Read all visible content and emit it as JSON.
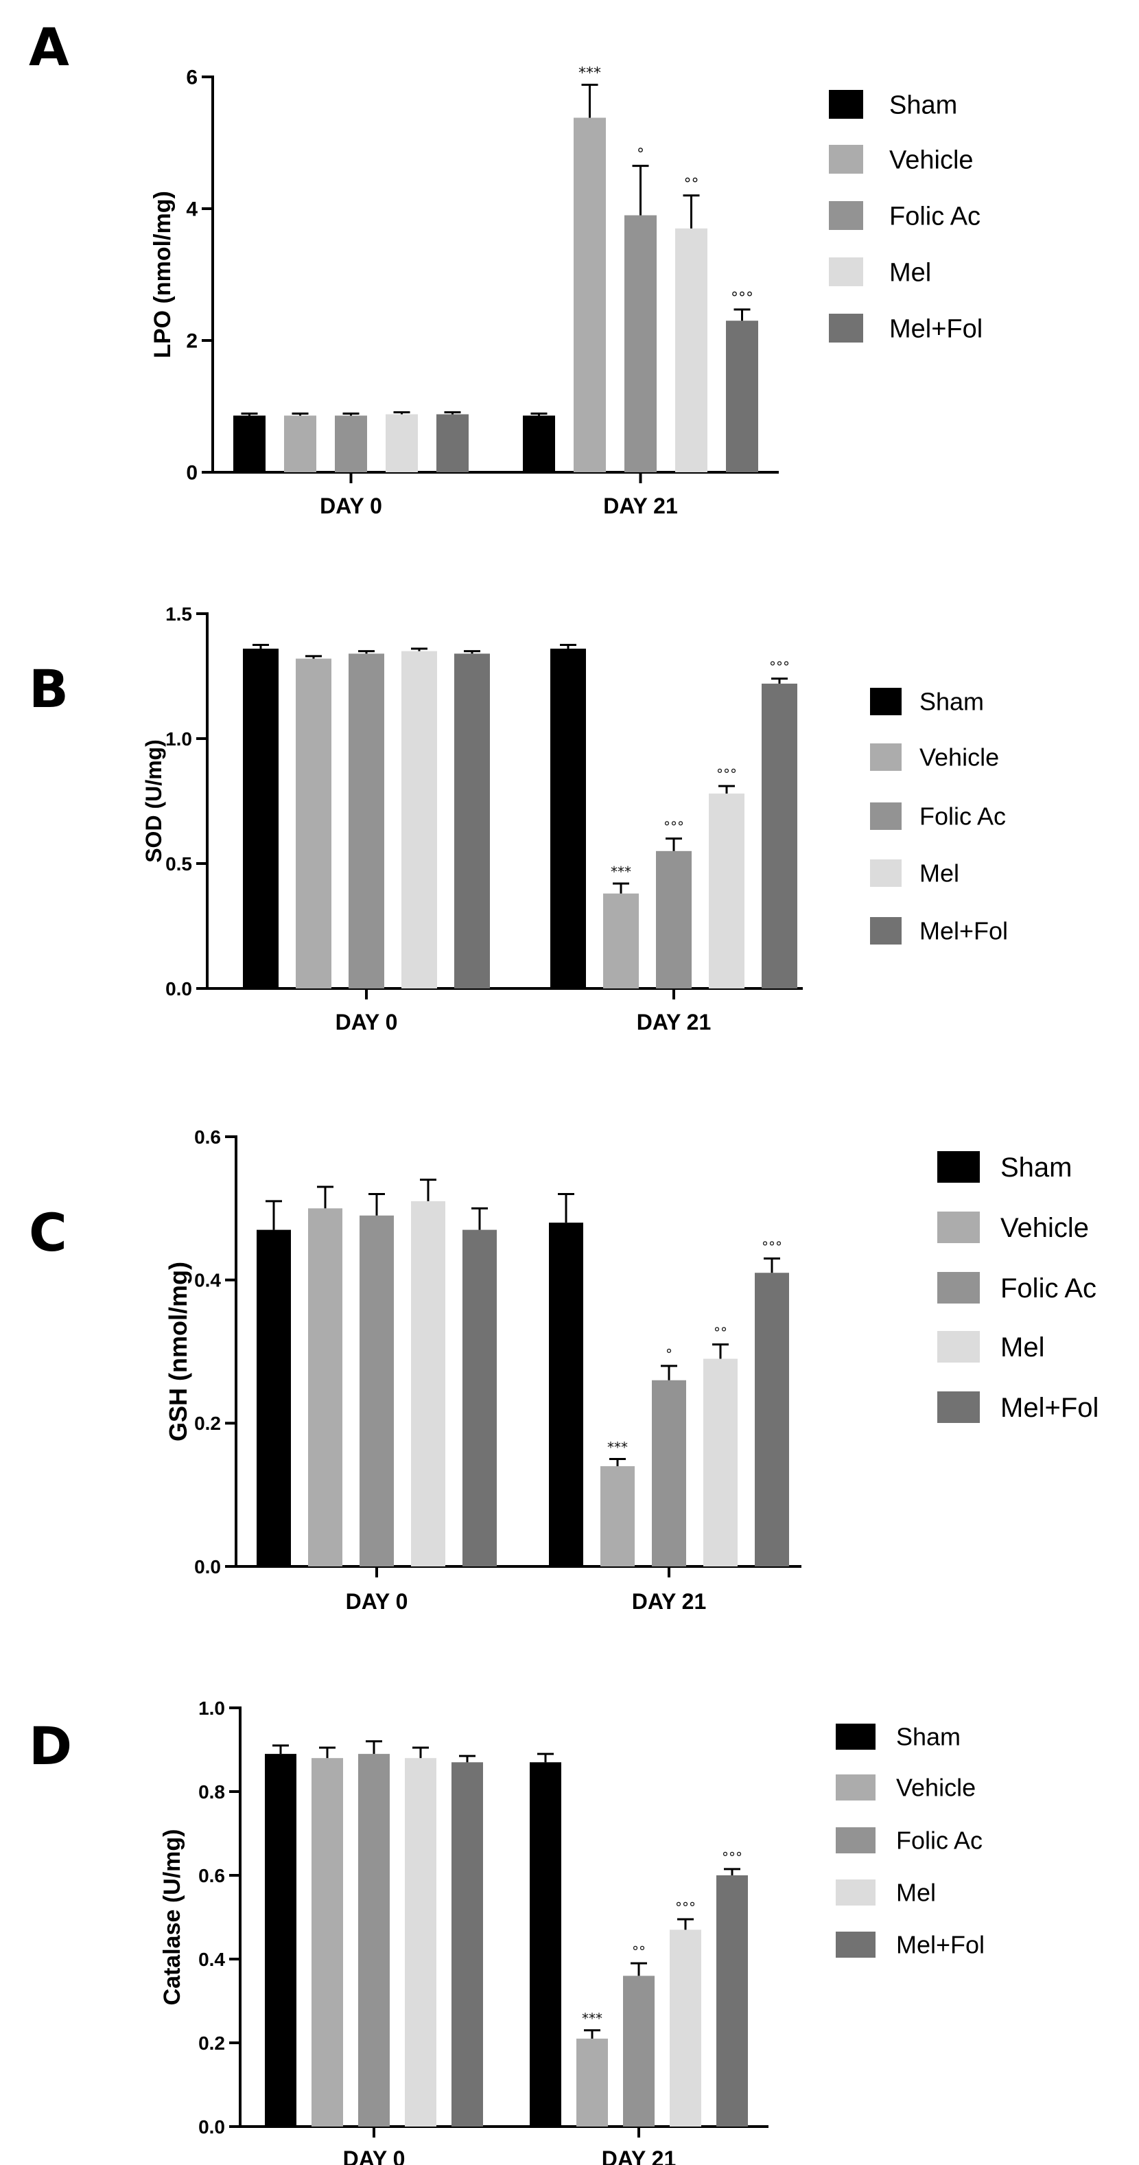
{
  "series_colors": {
    "Sham": "#000000",
    "Vehicle": "#acacac",
    "Folic Ac": "#939393",
    "Mel": "#dcdcdc",
    "Mel+Fol": "#727272"
  },
  "chart_data": [
    {
      "type": "bar",
      "panel": "A",
      "ylabel": "LPO (nmol/mg)",
      "ylim": [
        0,
        6
      ],
      "yticks": [
        "0",
        "2",
        "4",
        "6"
      ],
      "categories": [
        "DAY 0",
        "DAY 21"
      ],
      "legend": [
        "Sham",
        "Vehicle",
        "Folic Ac",
        "Mel",
        "Mel+Fol"
      ],
      "series": [
        {
          "name": "Sham",
          "values": [
            0.86,
            0.86
          ],
          "errors": [
            0.03,
            0.03
          ],
          "annotations": [
            "",
            ""
          ]
        },
        {
          "name": "Vehicle",
          "values": [
            0.86,
            5.38
          ],
          "errors": [
            0.03,
            0.5
          ],
          "annotations": [
            "",
            "***"
          ]
        },
        {
          "name": "Folic Ac",
          "values": [
            0.86,
            3.9
          ],
          "errors": [
            0.03,
            0.75
          ],
          "annotations": [
            "",
            "°"
          ]
        },
        {
          "name": "Mel",
          "values": [
            0.88,
            3.7
          ],
          "errors": [
            0.03,
            0.5
          ],
          "annotations": [
            "",
            "°°"
          ]
        },
        {
          "name": "Mel+Fol",
          "values": [
            0.88,
            2.3
          ],
          "errors": [
            0.03,
            0.17
          ],
          "annotations": [
            "",
            "°°°"
          ]
        }
      ]
    },
    {
      "type": "bar",
      "panel": "B",
      "ylabel": "SOD (U/mg)",
      "ylim": [
        0,
        1.5
      ],
      "yticks": [
        "0.0",
        "0.5",
        "1.0",
        "1.5"
      ],
      "categories": [
        "DAY 0",
        "DAY 21"
      ],
      "legend": [
        "Sham",
        "Vehicle",
        "Folic Ac",
        "Mel",
        "Mel+Fol"
      ],
      "series": [
        {
          "name": "Sham",
          "values": [
            1.36,
            1.36
          ],
          "errors": [
            0.015,
            0.015
          ],
          "annotations": [
            "",
            ""
          ]
        },
        {
          "name": "Vehicle",
          "values": [
            1.32,
            0.38
          ],
          "errors": [
            0.01,
            0.04
          ],
          "annotations": [
            "",
            "***"
          ]
        },
        {
          "name": "Folic Ac",
          "values": [
            1.34,
            0.55
          ],
          "errors": [
            0.01,
            0.05
          ],
          "annotations": [
            "",
            "°°°"
          ]
        },
        {
          "name": "Mel",
          "values": [
            1.35,
            0.78
          ],
          "errors": [
            0.01,
            0.03
          ],
          "annotations": [
            "",
            "°°°"
          ]
        },
        {
          "name": "Mel+Fol",
          "values": [
            1.34,
            1.22
          ],
          "errors": [
            0.01,
            0.02
          ],
          "annotations": [
            "",
            "°°°"
          ]
        }
      ]
    },
    {
      "type": "bar",
      "panel": "C",
      "ylabel": "GSH (nmol/mg)",
      "ylim": [
        0,
        0.6
      ],
      "yticks": [
        "0.0",
        "0.2",
        "0.4",
        "0.6"
      ],
      "categories": [
        "DAY 0",
        "DAY 21"
      ],
      "legend": [
        "Sham",
        "Vehicle",
        "Folic Ac",
        "Mel",
        "Mel+Fol"
      ],
      "series": [
        {
          "name": "Sham",
          "values": [
            0.47,
            0.48
          ],
          "errors": [
            0.04,
            0.04
          ],
          "annotations": [
            "",
            ""
          ]
        },
        {
          "name": "Vehicle",
          "values": [
            0.5,
            0.14
          ],
          "errors": [
            0.03,
            0.01
          ],
          "annotations": [
            "",
            "***"
          ]
        },
        {
          "name": "Folic Ac",
          "values": [
            0.49,
            0.26
          ],
          "errors": [
            0.03,
            0.02
          ],
          "annotations": [
            "",
            "°"
          ]
        },
        {
          "name": "Mel",
          "values": [
            0.51,
            0.29
          ],
          "errors": [
            0.03,
            0.02
          ],
          "annotations": [
            "",
            "°°"
          ]
        },
        {
          "name": "Mel+Fol",
          "values": [
            0.47,
            0.41
          ],
          "errors": [
            0.03,
            0.02
          ],
          "annotations": [
            "",
            "°°°"
          ]
        }
      ]
    },
    {
      "type": "bar",
      "panel": "D",
      "ylabel": "Catalase (U/mg)",
      "ylim": [
        0,
        1.0
      ],
      "yticks": [
        "0.0",
        "0.2",
        "0.4",
        "0.6",
        "0.8",
        "1.0"
      ],
      "categories": [
        "DAY 0",
        "DAY 21"
      ],
      "legend": [
        "Sham",
        "Vehicle",
        "Folic Ac",
        "Mel",
        "Mel+Fol"
      ],
      "series": [
        {
          "name": "Sham",
          "values": [
            0.89,
            0.87
          ],
          "errors": [
            0.02,
            0.02
          ],
          "annotations": [
            "",
            ""
          ]
        },
        {
          "name": "Vehicle",
          "values": [
            0.88,
            0.21
          ],
          "errors": [
            0.025,
            0.02
          ],
          "annotations": [
            "",
            "***"
          ]
        },
        {
          "name": "Folic Ac",
          "values": [
            0.89,
            0.36
          ],
          "errors": [
            0.03,
            0.03
          ],
          "annotations": [
            "",
            "°°"
          ]
        },
        {
          "name": "Mel",
          "values": [
            0.88,
            0.47
          ],
          "errors": [
            0.025,
            0.025
          ],
          "annotations": [
            "",
            "°°°"
          ]
        },
        {
          "name": "Mel+Fol",
          "values": [
            0.87,
            0.6
          ],
          "errors": [
            0.015,
            0.015
          ],
          "annotations": [
            "",
            "°°°"
          ]
        }
      ]
    }
  ]
}
